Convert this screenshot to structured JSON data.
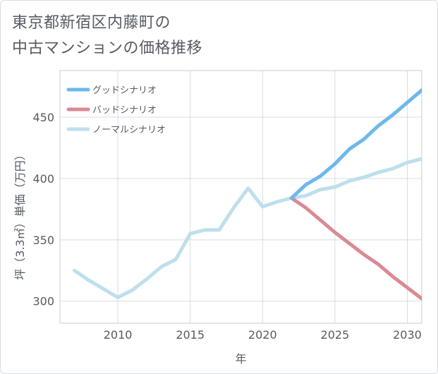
{
  "title_lines": [
    "東京都新宿区内藤町の",
    "中古マンションの価格推移"
  ],
  "chart_data": {
    "type": "line",
    "title": "東京都新宿区内藤町の中古マンションの価格推移",
    "xlabel": "年",
    "ylabel": "坪（3.3㎡）単価（万円）",
    "xlim": [
      2006,
      2031
    ],
    "ylim": [
      282,
      488
    ],
    "x_ticks": [
      2010,
      2015,
      2020,
      2025,
      2030
    ],
    "y_ticks": [
      300,
      350,
      400,
      450
    ],
    "legend_position": "top-left",
    "series": [
      {
        "name": "グッドシナリオ",
        "color": "#6cb8ec",
        "x": [
          2022,
          2023,
          2024,
          2025,
          2026,
          2027,
          2028,
          2029,
          2030,
          2031
        ],
        "y": [
          384,
          395,
          402,
          412,
          424,
          432,
          443,
          452,
          462,
          472
        ]
      },
      {
        "name": "バッドシナリオ",
        "color": "#d98a94",
        "x": [
          2022,
          2023,
          2024,
          2025,
          2026,
          2027,
          2028,
          2029,
          2030,
          2031
        ],
        "y": [
          384,
          376,
          366,
          356,
          347,
          338,
          330,
          320,
          311,
          302
        ]
      },
      {
        "name": "ノーマルシナリオ",
        "color": "#bedfed",
        "x": [
          2007,
          2008,
          2009,
          2010,
          2011,
          2012,
          2013,
          2014,
          2015,
          2016,
          2017,
          2018,
          2019,
          2020,
          2021,
          2022,
          2023,
          2024,
          2025,
          2026,
          2027,
          2028,
          2029,
          2030,
          2031
        ],
        "y": [
          325,
          317,
          310,
          303,
          309,
          318,
          328,
          334,
          355,
          358,
          358,
          376,
          392,
          377,
          381,
          384,
          386,
          391,
          393,
          398,
          401,
          405,
          408,
          413,
          416
        ]
      }
    ]
  }
}
